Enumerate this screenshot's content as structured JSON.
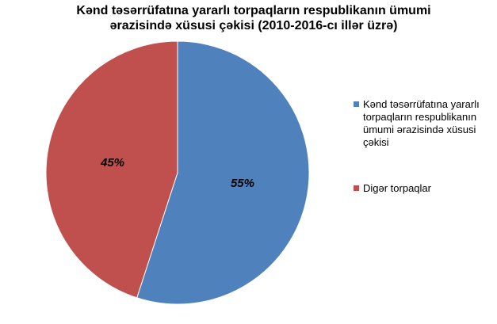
{
  "chart_data": {
    "type": "pie",
    "title": "Kənd təsərrüfatına yararlı torpaqların respublikanın ümumi ərazisində xüsusi çəkisi (2010-2016-cı illər üzrə)",
    "title_lines": [
      "Kənd təsərrüfatına yararlı torpaqların respublikanın ümumi",
      "ərazisində xüsusi çəkisi (2010-2016-cı illər üzrə)"
    ],
    "categories": [
      "Kənd təsərrüfatına yararlı torpaqların respublikanın ümumi ərazisində xüsusi çəkisi",
      "Digər torpaqlar"
    ],
    "values": [
      55,
      45
    ],
    "data_labels": [
      "55%",
      "45%"
    ],
    "colors": [
      "#4F81BD",
      "#C0504D"
    ],
    "legend_position": "right",
    "legend": [
      {
        "label": "Kənd təsərrüfatına yararlı torpaqların respublikanın ümumi ərazisində xüsusi çəkisi",
        "color": "#4F81BD"
      },
      {
        "label": "Digər torpaqlar",
        "color": "#C0504D"
      }
    ]
  }
}
